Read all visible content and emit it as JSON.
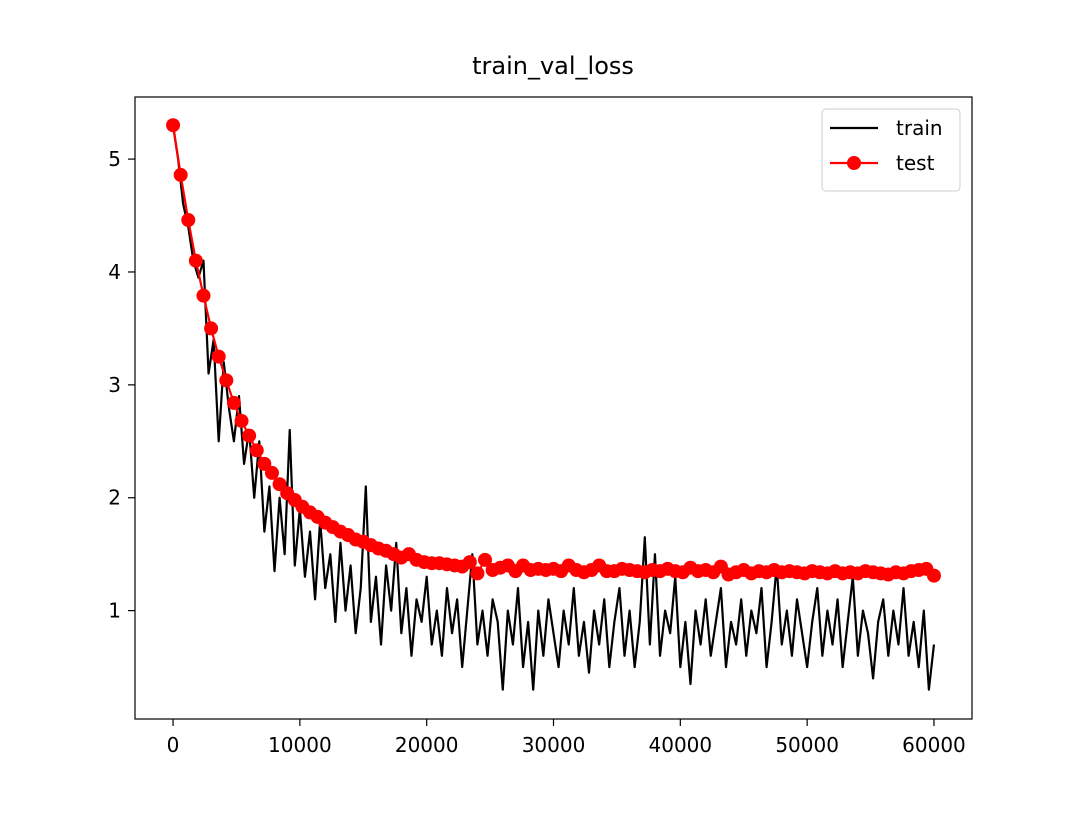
{
  "chart_data": {
    "type": "line",
    "title": "train_val_loss",
    "xlim": [
      -3000,
      63000
    ],
    "ylim": [
      0.04,
      5.55
    ],
    "xticks": [
      0,
      10000,
      20000,
      30000,
      40000,
      50000,
      60000
    ],
    "yticks": [
      1,
      2,
      3,
      4,
      5
    ],
    "grid": false,
    "legend": "upper right",
    "series": [
      {
        "name": "train",
        "color": "#000000",
        "marker": false,
        "x": [
          0,
          400,
          800,
          1200,
          1600,
          2000,
          2400,
          2800,
          3200,
          3600,
          4000,
          4400,
          4800,
          5200,
          5600,
          6000,
          6400,
          6800,
          7200,
          7600,
          8000,
          8400,
          8800,
          9200,
          9600,
          10000,
          10400,
          10800,
          11200,
          11600,
          12000,
          12400,
          12800,
          13200,
          13600,
          14000,
          14400,
          14800,
          15200,
          15600,
          16000,
          16400,
          16800,
          17200,
          17600,
          18000,
          18400,
          18800,
          19200,
          19600,
          20000,
          20400,
          20800,
          21200,
          21600,
          22000,
          22400,
          22800,
          23200,
          23600,
          24000,
          24400,
          24800,
          25200,
          25600,
          26000,
          26400,
          26800,
          27200,
          27600,
          28000,
          28400,
          28800,
          29200,
          29600,
          30000,
          30400,
          30800,
          31200,
          31600,
          32000,
          32400,
          32800,
          33200,
          33600,
          34000,
          34400,
          34800,
          35200,
          35600,
          36000,
          36400,
          36800,
          37200,
          37600,
          38000,
          38400,
          38800,
          39200,
          39600,
          40000,
          40400,
          40800,
          41200,
          41600,
          42000,
          42400,
          42800,
          43200,
          43600,
          44000,
          44400,
          44800,
          45200,
          45600,
          46000,
          46400,
          46800,
          47200,
          47600,
          48000,
          48400,
          48800,
          49200,
          49600,
          50000,
          50400,
          50800,
          51200,
          51600,
          52000,
          52400,
          52800,
          53200,
          53600,
          54000,
          54400,
          54800,
          55200,
          55600,
          56000,
          56400,
          56800,
          57200,
          57600,
          58000,
          58400,
          58800,
          59200,
          59600,
          60000
        ],
        "values": [
          5.3,
          5.0,
          4.6,
          4.4,
          4.1,
          3.95,
          4.1,
          3.1,
          3.4,
          2.5,
          3.2,
          2.8,
          2.5,
          2.9,
          2.3,
          2.6,
          2.0,
          2.5,
          1.7,
          2.1,
          1.35,
          2.0,
          1.5,
          2.6,
          1.4,
          1.9,
          1.3,
          1.7,
          1.1,
          1.8,
          1.2,
          1.5,
          0.9,
          1.6,
          1.0,
          1.4,
          0.8,
          1.2,
          2.1,
          0.9,
          1.3,
          0.7,
          1.4,
          1.0,
          1.6,
          0.8,
          1.2,
          0.6,
          1.1,
          0.9,
          1.3,
          0.7,
          1.0,
          0.6,
          1.2,
          0.8,
          1.1,
          0.5,
          1.0,
          1.5,
          0.7,
          1.0,
          0.6,
          1.1,
          0.9,
          0.3,
          1.0,
          0.7,
          1.2,
          0.5,
          0.9,
          0.3,
          1.0,
          0.6,
          1.1,
          0.8,
          0.5,
          1.0,
          0.7,
          1.2,
          0.6,
          0.9,
          0.45,
          1.0,
          0.7,
          1.1,
          0.5,
          0.9,
          1.2,
          0.6,
          1.0,
          0.5,
          0.9,
          1.65,
          0.7,
          1.5,
          0.6,
          1.0,
          0.8,
          1.3,
          0.5,
          0.9,
          0.35,
          1.0,
          0.7,
          1.1,
          0.6,
          0.9,
          1.2,
          0.5,
          0.9,
          0.7,
          1.1,
          0.6,
          1.0,
          0.8,
          1.2,
          0.5,
          0.9,
          1.4,
          0.7,
          1.0,
          0.6,
          1.1,
          0.8,
          0.5,
          0.9,
          1.2,
          0.6,
          1.0,
          0.7,
          1.1,
          0.5,
          0.9,
          1.3,
          0.6,
          1.0,
          0.8,
          0.4,
          0.9,
          1.1,
          0.6,
          1.0,
          0.7,
          1.2,
          0.6,
          0.9,
          0.5,
          1.0,
          0.3,
          0.7
        ]
      },
      {
        "name": "test",
        "color": "#ff0000",
        "marker": true,
        "x": [
          0,
          600,
          1200,
          1800,
          2400,
          3000,
          3600,
          4200,
          4800,
          5400,
          6000,
          6600,
          7200,
          7800,
          8400,
          9000,
          9600,
          10200,
          10800,
          11400,
          12000,
          12600,
          13200,
          13800,
          14400,
          15000,
          15600,
          16200,
          16800,
          17400,
          18000,
          18600,
          19200,
          19800,
          20400,
          21000,
          21600,
          22200,
          22800,
          23400,
          24000,
          24600,
          25200,
          25800,
          26400,
          27000,
          27600,
          28200,
          28800,
          29400,
          30000,
          30600,
          31200,
          31800,
          32400,
          33000,
          33600,
          34200,
          34800,
          35400,
          36000,
          36600,
          37200,
          37800,
          38400,
          39000,
          39600,
          40200,
          40800,
          41400,
          42000,
          42600,
          43200,
          43800,
          44400,
          45000,
          45600,
          46200,
          46800,
          47400,
          48000,
          48600,
          49200,
          49800,
          50400,
          51000,
          51600,
          52200,
          52800,
          53400,
          54000,
          54600,
          55200,
          55800,
          56400,
          57000,
          57600,
          58200,
          58800,
          59400,
          60000
        ],
        "values": [
          5.3,
          4.86,
          4.46,
          4.1,
          3.79,
          3.5,
          3.25,
          3.04,
          2.84,
          2.68,
          2.55,
          2.42,
          2.3,
          2.22,
          2.12,
          2.04,
          1.98,
          1.92,
          1.87,
          1.83,
          1.78,
          1.74,
          1.7,
          1.67,
          1.63,
          1.61,
          1.58,
          1.55,
          1.53,
          1.5,
          1.47,
          1.5,
          1.45,
          1.43,
          1.42,
          1.42,
          1.41,
          1.4,
          1.39,
          1.43,
          1.33,
          1.45,
          1.36,
          1.38,
          1.4,
          1.35,
          1.4,
          1.36,
          1.37,
          1.36,
          1.37,
          1.35,
          1.4,
          1.36,
          1.34,
          1.36,
          1.4,
          1.35,
          1.35,
          1.37,
          1.36,
          1.35,
          1.34,
          1.36,
          1.35,
          1.37,
          1.35,
          1.34,
          1.38,
          1.35,
          1.36,
          1.34,
          1.39,
          1.32,
          1.34,
          1.36,
          1.33,
          1.35,
          1.34,
          1.36,
          1.34,
          1.35,
          1.34,
          1.33,
          1.35,
          1.34,
          1.33,
          1.35,
          1.33,
          1.34,
          1.33,
          1.35,
          1.34,
          1.33,
          1.32,
          1.34,
          1.33,
          1.35,
          1.36,
          1.37,
          1.31
        ]
      }
    ]
  }
}
